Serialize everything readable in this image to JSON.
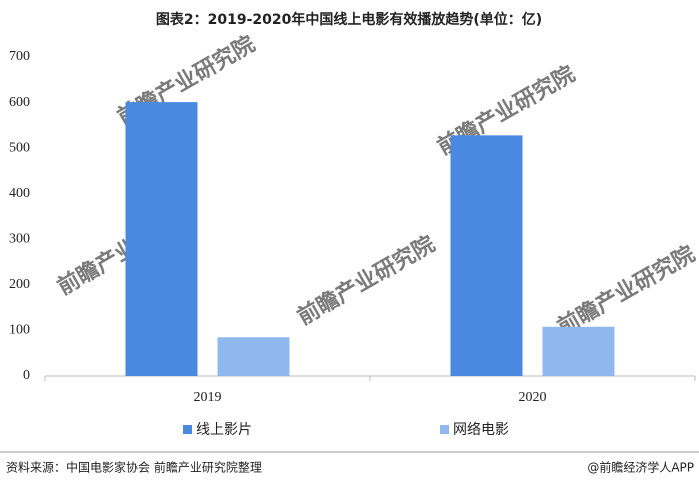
{
  "chart_data": {
    "type": "bar",
    "title": "图表2：2019-2020年中国线上电影有效播放趋势(单位：亿)",
    "categories": [
      "2019",
      "2020"
    ],
    "series": [
      {
        "name": "线上影片",
        "color": "#4a89e0",
        "values": [
          601,
          528
        ]
      },
      {
        "name": "网络电影",
        "color": "#8fb8ee",
        "values": [
          85,
          108
        ]
      }
    ],
    "ylim": [
      0,
      700
    ],
    "yticks": [
      0,
      100,
      200,
      300,
      400,
      500,
      600,
      700
    ],
    "grid": false,
    "legend": "bottom",
    "watermark": "前瞻产业研究院",
    "source": "资料来源：中国电影家协会 前瞻产业研究院整理",
    "credit": "@前瞻经济学人APP"
  }
}
